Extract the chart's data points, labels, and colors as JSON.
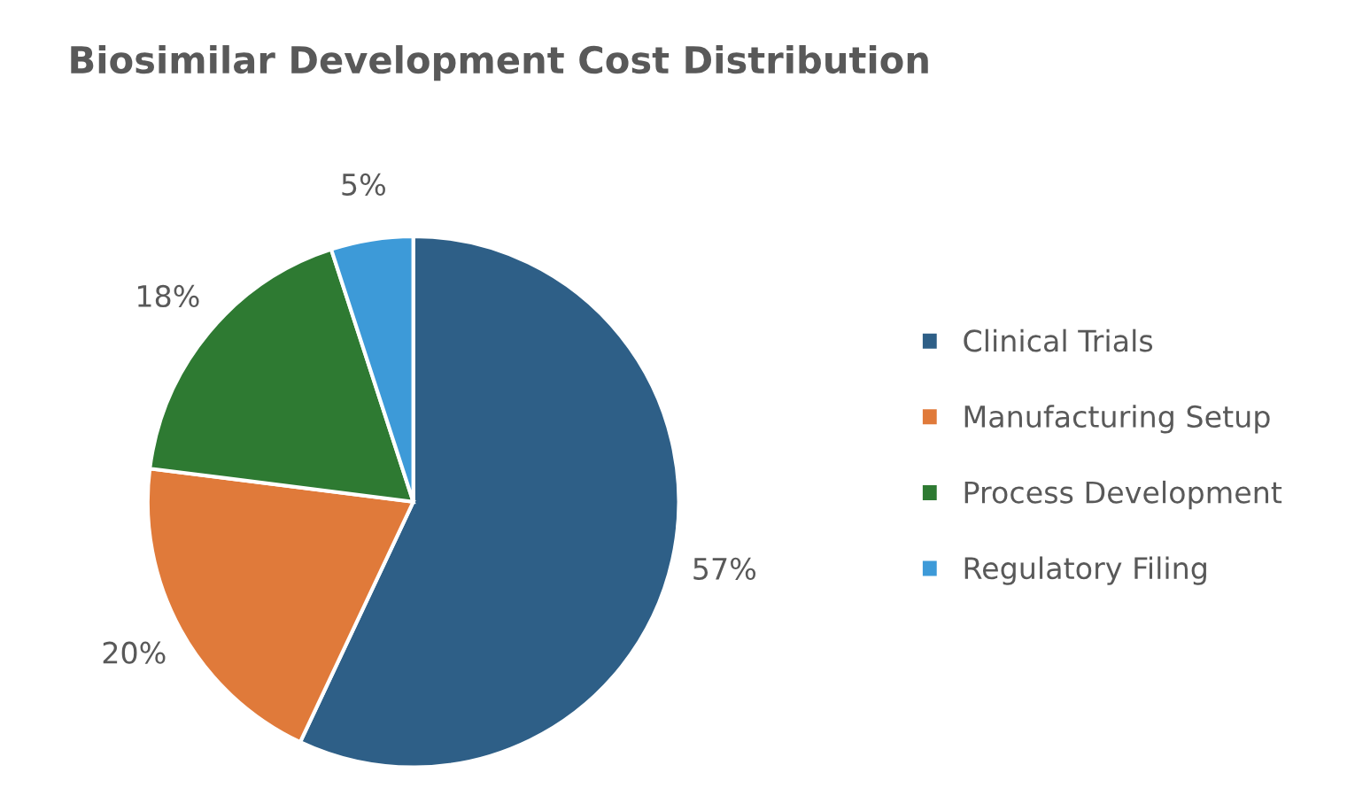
{
  "chart_data": {
    "type": "pie",
    "title": "Biosimilar Development Cost Distribution",
    "categories": [
      "Clinical Trials",
      "Manufacturing Setup",
      "Process Development",
      "Regulatory Filing"
    ],
    "values": [
      57,
      20,
      18,
      5
    ],
    "colors": [
      "#2e5f87",
      "#e07a3a",
      "#2e7a32",
      "#3d9ad8"
    ],
    "value_labels": [
      "57%",
      "20%",
      "18%",
      "5%"
    ],
    "legend": "right"
  }
}
